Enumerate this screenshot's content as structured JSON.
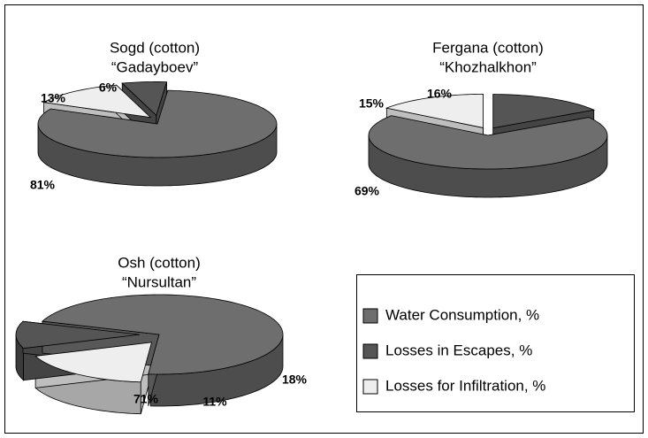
{
  "legend": {
    "entries": [
      "Water Consumption, %",
      "Losses in Escapes, %",
      "Losses for Infiltration, %"
    ],
    "colors": [
      "#6e6e6e",
      "#555555",
      "#eeeeee"
    ]
  },
  "chart_data": [
    {
      "type": "pie",
      "title": "Sogd (cotton)",
      "subtitle": "“Gadayboev”",
      "values": [
        81,
        6,
        13
      ],
      "value_labels": [
        "81%",
        "6%",
        "13%"
      ]
    },
    {
      "type": "pie",
      "title": "Fergana (cotton)",
      "subtitle": "“Khozhalkhon”",
      "values": [
        69,
        16,
        15
      ],
      "value_labels": [
        "69%",
        "16%",
        "15%"
      ]
    },
    {
      "type": "pie",
      "title": "Osh (cotton)",
      "subtitle": "“Nursultan”",
      "values": [
        71,
        11,
        18
      ],
      "value_labels": [
        "71%",
        "11%",
        "18%"
      ]
    }
  ]
}
